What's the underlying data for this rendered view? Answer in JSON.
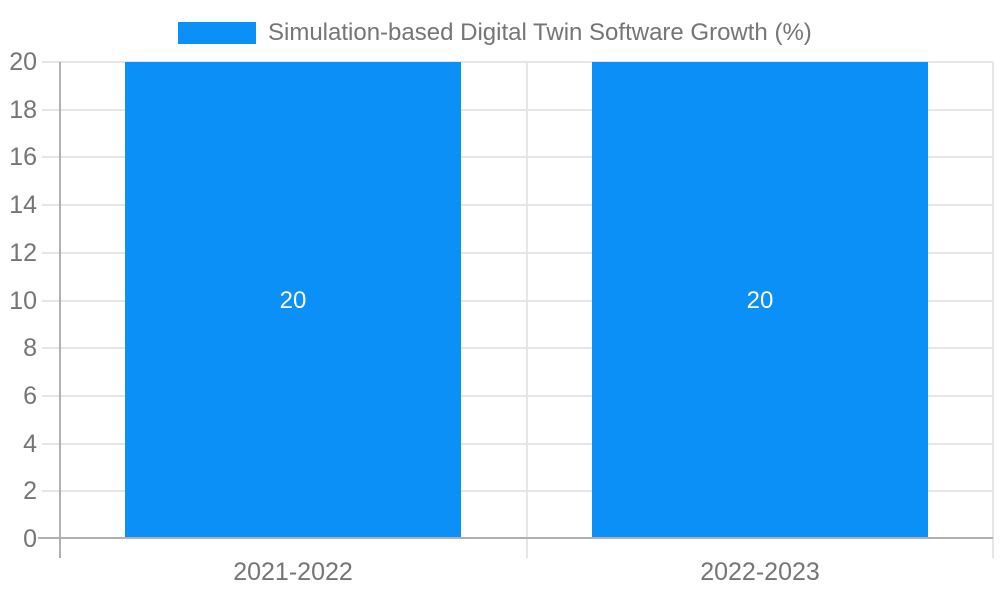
{
  "chart_data": {
    "type": "bar",
    "title": "Simulation-based Digital Twin Software Growth (%)",
    "legend_label": "Simulation-based Digital Twin Software Growth (%)",
    "legend_position": "top",
    "categories": [
      "2021-2022",
      "2022-2023"
    ],
    "series": [
      {
        "name": "Simulation-based Digital Twin Software Growth (%)",
        "values": [
          20,
          20
        ]
      }
    ],
    "bar_value_labels": [
      "20",
      "20"
    ],
    "xlabel": "",
    "ylabel": "",
    "ylim": [
      0,
      20
    ],
    "yticks": [
      0,
      2,
      4,
      6,
      8,
      10,
      12,
      14,
      16,
      18,
      20
    ],
    "grid": true,
    "colors": {
      "bar": "#0A90F7",
      "axis_text": "#757575",
      "legend_text": "#757575",
      "bar_label_text": "#ffffff",
      "gridline": "#e6e6e6",
      "axis_line": "#b0b0b0",
      "background": "#ffffff"
    }
  }
}
